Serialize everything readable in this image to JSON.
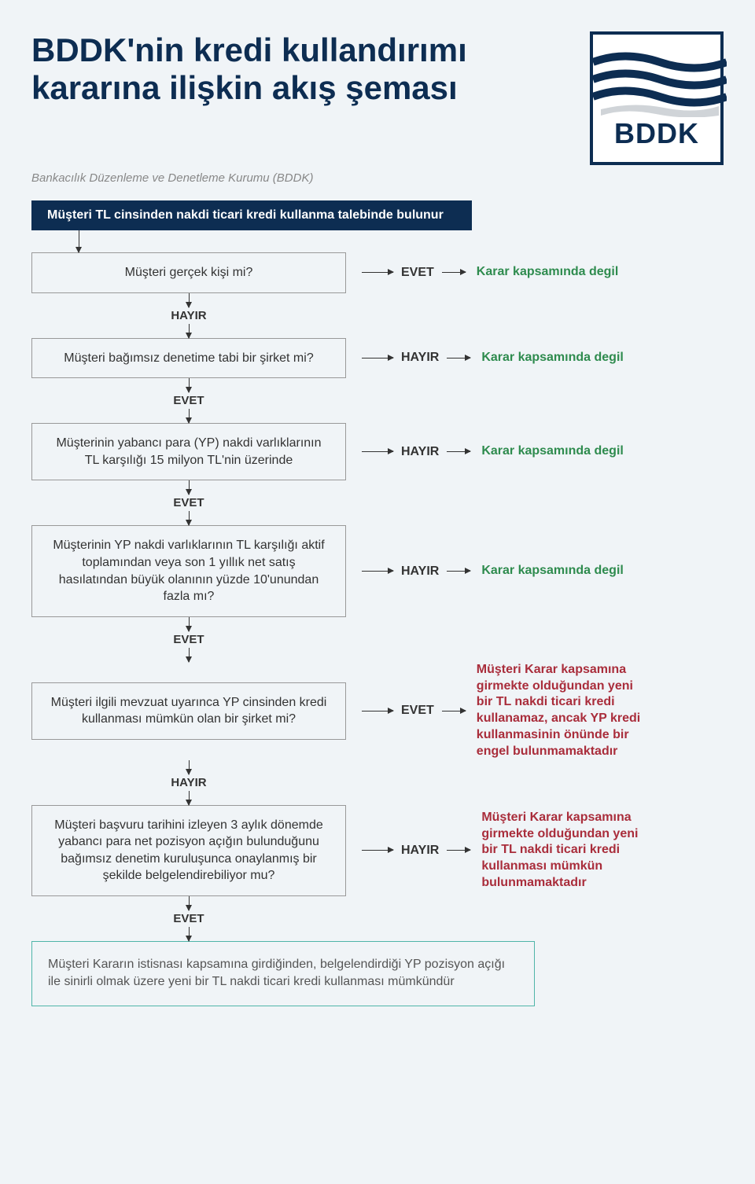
{
  "title": "BDDK'nin kredi kullandırımı kararına ilişkin akış  şeması",
  "subtitle": "Bankacılık Düzenleme ve Denetleme Kurumu (BDDK)",
  "logo_text": "BDDK",
  "start": "Müşteri TL cinsinden nakdi ticari kredi kullanma talebinde bulunur",
  "labels": {
    "yes": "EVET",
    "no": "HAYIR"
  },
  "results": {
    "out_of_scope": "Karar kapsamında degil",
    "red1": "Müşteri Karar kapsamına girmekte olduğundan yeni bir TL nakdi ticari kredi kullanamaz, ancak YP kredi kullanmasinin önünde bir engel bulunmamaktadır",
    "red2": "Müşteri Karar kapsamına girmekte olduğundan yeni bir TL nakdi ticari kredi kullanması mümkün bulunmamaktadır"
  },
  "questions": {
    "q1": "Müşteri gerçek kişi mi?",
    "q2": "Müşteri bağımsız denetime tabi bir şirket mi?",
    "q3": "Müşterinin yabancı para (YP) nakdi varlıklarının TL karşılığı 15 milyon TL'nin üzerinde",
    "q4": "Müşterinin YP nakdi varlıklarının TL karşılığı aktif toplamından veya son 1 yıllık net satış hasılatından büyük olanının yüzde 10'unundan fazla mı?",
    "q5": "Müşteri ilgili mevzuat uyarınca YP cinsinden kredi kullanması mümkün olan bir şirket mi?",
    "q6": "Müşteri başvuru tarihini izleyen 3 aylık dönemde yabancı para net pozisyon açığın bulunduğunu bağımsız denetim kuruluşunca onaylanmış bir şekilde belgelendirebiliyor mu?"
  },
  "final": "Müşteri Kararın istisnası kapsamına girdiğinden, belgelendirdiği YP pozisyon açığı ile sinirli olmak üzere yeni bir TL nakdi ticari kredi kullanması mümkündür",
  "colors": {
    "navy": "#0d2d52",
    "bg": "#f0f4f7",
    "green": "#2e8b4e",
    "red": "#a92d3b",
    "teal": "#4fb5a8"
  },
  "steps": [
    {
      "q": "q1",
      "branch": "yes",
      "down": "no",
      "result": "out_of_scope",
      "rclass": "green"
    },
    {
      "q": "q2",
      "branch": "no",
      "down": "yes",
      "result": "out_of_scope",
      "rclass": "green"
    },
    {
      "q": "q3",
      "branch": "no",
      "down": "yes",
      "result": "out_of_scope",
      "rclass": "green"
    },
    {
      "q": "q4",
      "branch": "no",
      "down": "yes",
      "result": "out_of_scope",
      "rclass": "green"
    },
    {
      "q": "q5",
      "branch": "yes",
      "down": "no",
      "result": "red1",
      "rclass": "red"
    },
    {
      "q": "q6",
      "branch": "no",
      "down": "yes",
      "result": "red2",
      "rclass": "red"
    }
  ]
}
